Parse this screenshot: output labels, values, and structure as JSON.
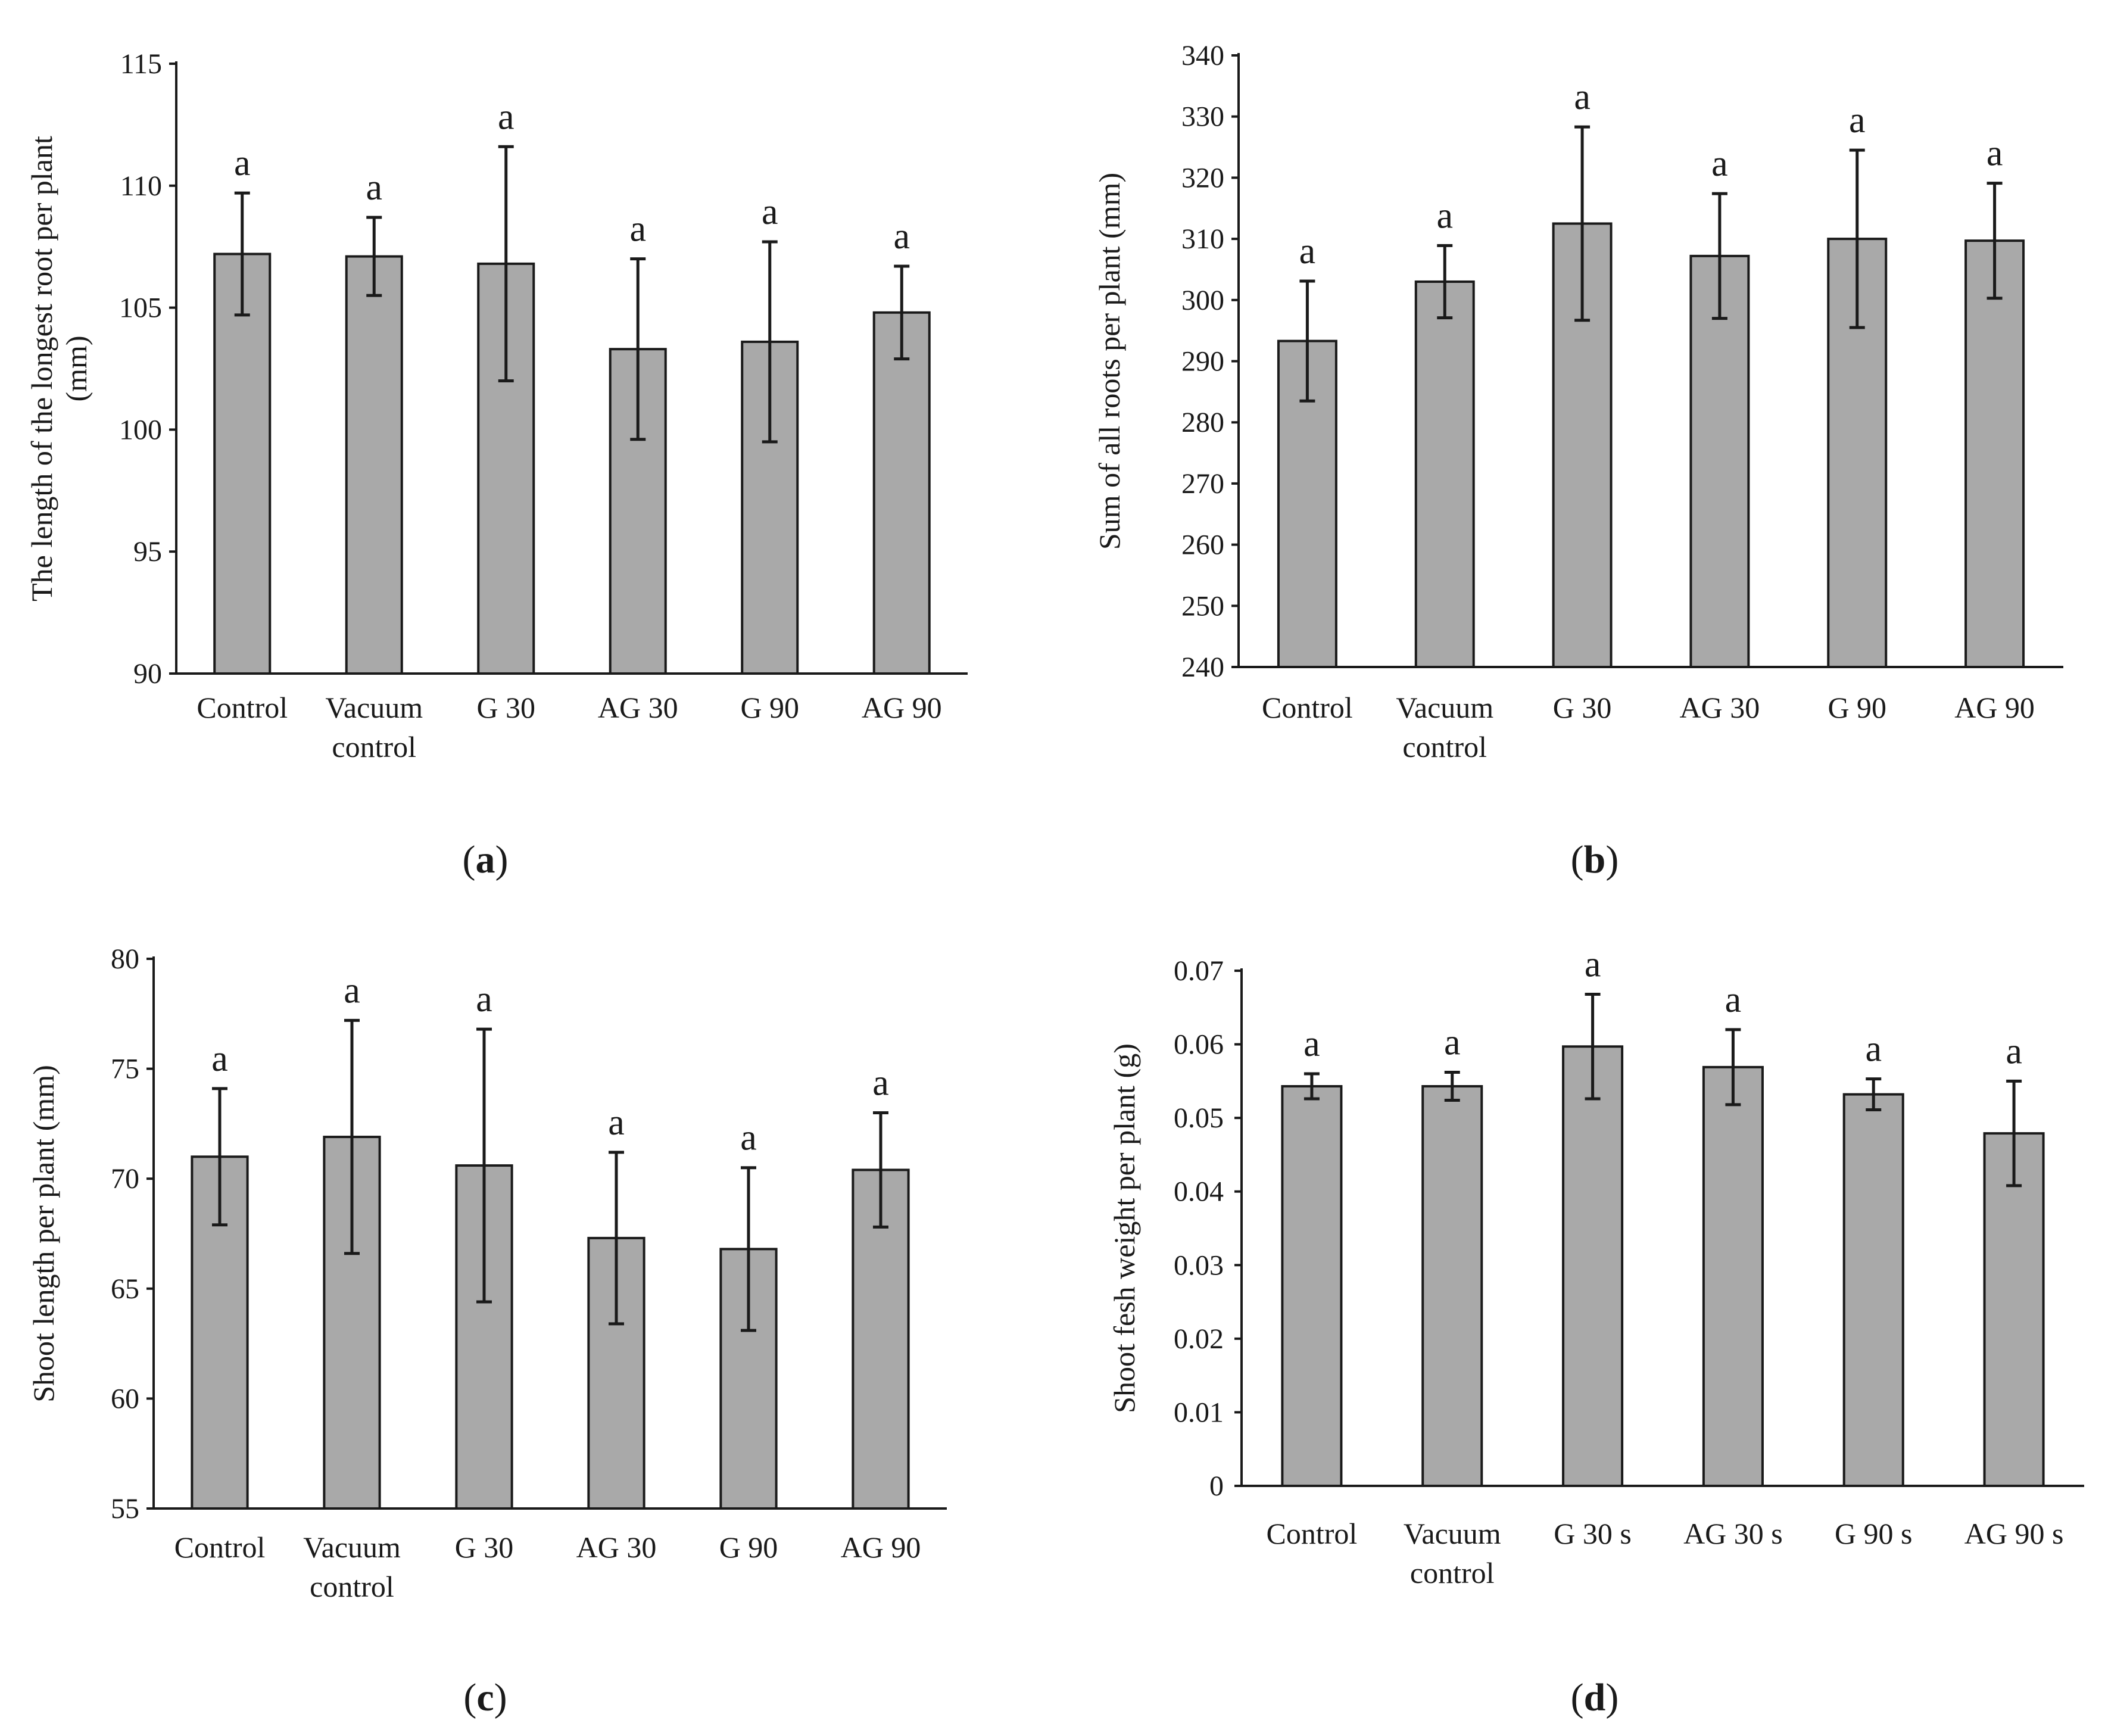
{
  "figure": {
    "panels": [
      "a",
      "b",
      "c",
      "d"
    ]
  },
  "chart_data": [
    {
      "type": "bar",
      "panel_letter": "a",
      "ylabel": "The length of the longest root per plant (mm)",
      "ylabel_lines": [
        "The length of the longest root per plant",
        "(mm)"
      ],
      "xlabel": "",
      "ylim": [
        90,
        115
      ],
      "yticks": [
        90,
        95,
        100,
        105,
        110,
        115
      ],
      "categories": [
        "Control",
        "Vacuum control",
        "G 30",
        "AG 30",
        "G 90",
        "AG 90"
      ],
      "category_lines": [
        [
          "Control"
        ],
        [
          "Vacuum",
          "control"
        ],
        [
          "G 30"
        ],
        [
          "AG 30"
        ],
        [
          "G 90"
        ],
        [
          "AG 90"
        ]
      ],
      "values": [
        107.2,
        107.1,
        106.8,
        103.3,
        103.6,
        104.8
      ],
      "errors": [
        2.5,
        1.6,
        4.8,
        3.7,
        4.1,
        1.9
      ],
      "significance": [
        "a",
        "a",
        "a",
        "a",
        "a",
        "a"
      ],
      "bar_color": "#a9a9a9"
    },
    {
      "type": "bar",
      "panel_letter": "b",
      "ylabel": "Sum of all roots per plant (mm)",
      "ylabel_lines": [
        "Sum of all roots per plant (mm)"
      ],
      "xlabel": "",
      "ylim": [
        240,
        340
      ],
      "yticks": [
        240,
        250,
        260,
        270,
        280,
        290,
        300,
        310,
        320,
        330,
        340
      ],
      "categories": [
        "Control",
        "Vacuum control",
        "G 30",
        "AG 30",
        "G 90",
        "AG 90"
      ],
      "category_lines": [
        [
          "Control"
        ],
        [
          "Vacuum",
          "control"
        ],
        [
          "G 30"
        ],
        [
          "AG 30"
        ],
        [
          "G 90"
        ],
        [
          "AG 90"
        ]
      ],
      "values": [
        293.3,
        303.0,
        312.5,
        307.2,
        310.0,
        309.7
      ],
      "errors": [
        9.8,
        5.9,
        15.8,
        10.2,
        14.5,
        9.4
      ],
      "significance": [
        "a",
        "a",
        "a",
        "a",
        "a",
        "a"
      ],
      "bar_color": "#a9a9a9"
    },
    {
      "type": "bar",
      "panel_letter": "c",
      "ylabel": "Shoot length per plant (mm)",
      "ylabel_lines": [
        "Shoot length per plant (mm)"
      ],
      "xlabel": "",
      "ylim": [
        55,
        80
      ],
      "yticks": [
        55,
        60,
        65,
        70,
        75,
        80
      ],
      "categories": [
        "Control",
        "Vacuum control",
        "G 30",
        "AG 30",
        "G 90",
        "AG 90"
      ],
      "category_lines": [
        [
          "Control"
        ],
        [
          "Vacuum",
          "control"
        ],
        [
          "G 30"
        ],
        [
          "AG 30"
        ],
        [
          "G 90"
        ],
        [
          "AG 90"
        ]
      ],
      "values": [
        71.0,
        71.9,
        70.6,
        67.3,
        66.8,
        70.4
      ],
      "errors": [
        3.1,
        5.3,
        6.2,
        3.9,
        3.7,
        2.6
      ],
      "significance": [
        "a",
        "a",
        "a",
        "a",
        "a",
        "a"
      ],
      "bar_color": "#a9a9a9"
    },
    {
      "type": "bar",
      "panel_letter": "d",
      "ylabel": "Shoot fesh weight per plant (g)",
      "ylabel_lines": [
        "Shoot fesh weight per plant (g)"
      ],
      "xlabel": "",
      "ylim": [
        0,
        0.07
      ],
      "yticks": [
        "0",
        "0.01",
        "0.02",
        "0.03",
        "0.04",
        "0.05",
        "0.06",
        "0.07"
      ],
      "categories": [
        "Control",
        "Vacuum control",
        "G 30 s",
        "AG 30 s",
        "G 90 s",
        "AG 90 s"
      ],
      "category_lines": [
        [
          "Control"
        ],
        [
          "Vacuum",
          "control"
        ],
        [
          "G 30 s"
        ],
        [
          "AG 30 s"
        ],
        [
          "G 90 s"
        ],
        [
          "AG 90 s"
        ]
      ],
      "values": [
        0.0543,
        0.0543,
        0.0597,
        0.0569,
        0.0532,
        0.0479
      ],
      "errors": [
        0.0017,
        0.0019,
        0.0071,
        0.0051,
        0.0021,
        0.0071
      ],
      "significance": [
        "a",
        "a",
        "a",
        "a",
        "a",
        "a"
      ],
      "bar_color": "#a9a9a9"
    }
  ]
}
